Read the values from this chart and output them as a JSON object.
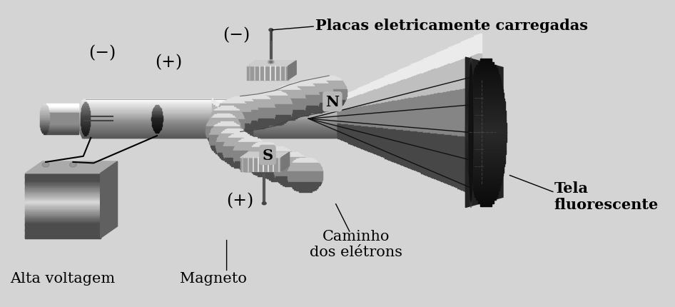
{
  "bg_color": "#d4d4d4",
  "text_color": "#000000",
  "labels": {
    "minus_top_left": "(−)",
    "plus_top_left": "(+)",
    "minus_plate_top": "(−)",
    "plus_plate_bottom": "(+)",
    "N_label": "N",
    "S_label": "S",
    "alta_voltagem": "Alta voltagem",
    "magneto": "Magneto",
    "caminho_eletrons": "Caminho\ndos elétrons",
    "tela_fluorescente": "Tela\nfluorescente",
    "placas": "Placas eletricamente carregadas"
  },
  "font_size_labels": 15,
  "figsize": [
    9.46,
    4.31
  ],
  "dpi": 100
}
